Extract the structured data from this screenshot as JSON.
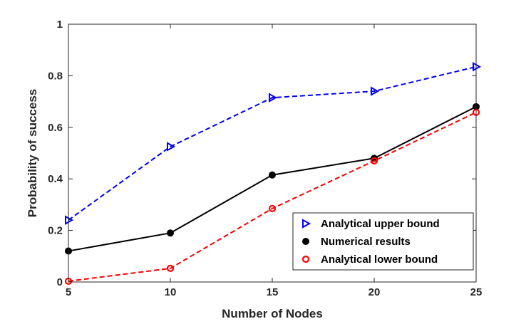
{
  "chart_data": {
    "type": "line",
    "xlabel": "Number of Nodes",
    "ylabel": "Probability of success",
    "x": [
      5,
      10,
      15,
      20,
      25
    ],
    "xlim": [
      5,
      25
    ],
    "ylim": [
      0,
      1
    ],
    "xticks": [
      "5",
      "10",
      "15",
      "20",
      "25"
    ],
    "yticks": [
      "0",
      "0.2",
      "0.4",
      "0.6",
      "0.8",
      "1"
    ],
    "grid": false,
    "legend_position": "bottom-right",
    "series": [
      {
        "name": "Analytical upper bound",
        "values": [
          0.24,
          0.525,
          0.715,
          0.74,
          0.835
        ],
        "color": "#0000ff",
        "line": "dashed",
        "marker": "triangle-right"
      },
      {
        "name": "Numerical results",
        "values": [
          0.12,
          0.19,
          0.415,
          0.48,
          0.68
        ],
        "color": "#000000",
        "line": "solid",
        "marker": "filled-circle"
      },
      {
        "name": "Analytical lower bound",
        "values": [
          0.003,
          0.053,
          0.285,
          0.47,
          0.658
        ],
        "color": "#ff0000",
        "line": "dashed",
        "marker": "hollow-circle"
      }
    ]
  }
}
